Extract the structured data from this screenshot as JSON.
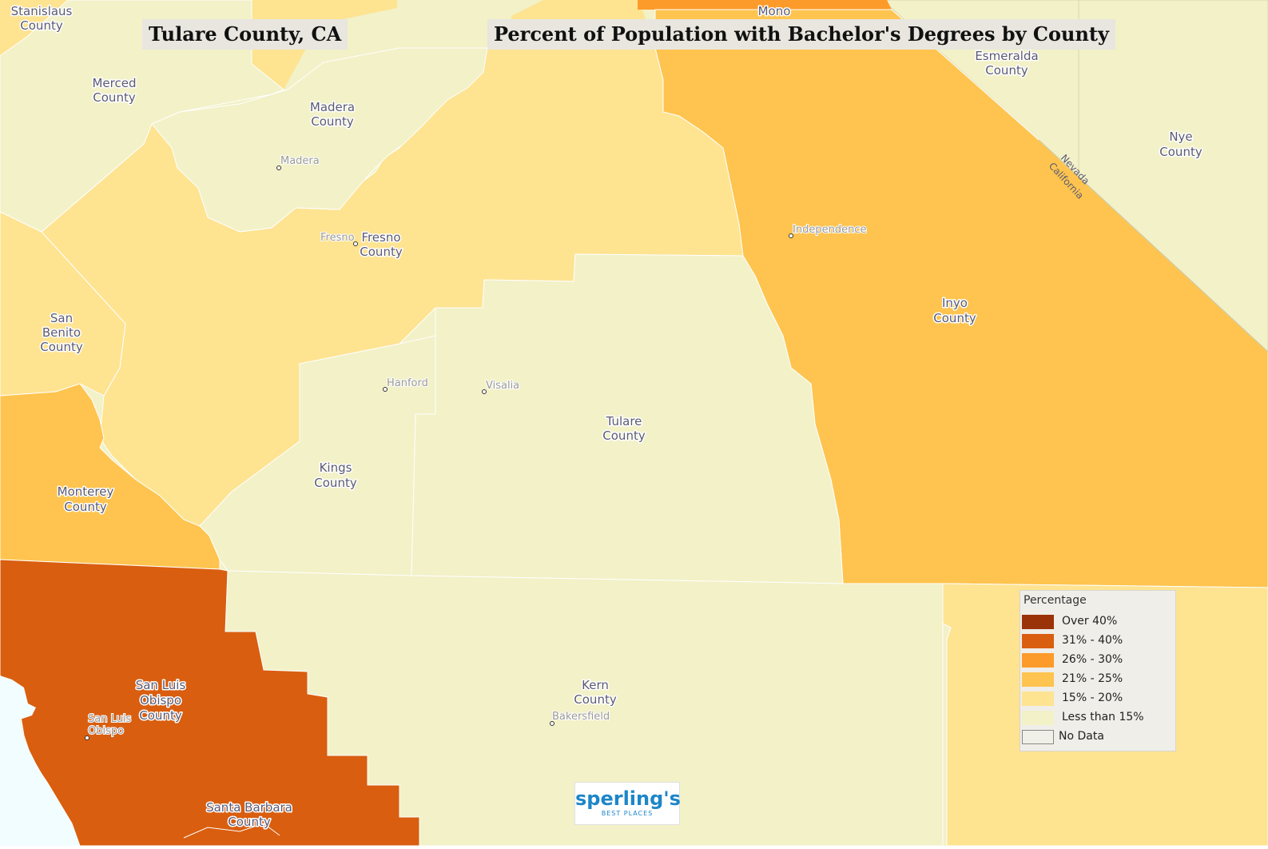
{
  "titles": {
    "county": "Tulare County, CA",
    "map": "Percent of Population with Bachelor's Degrees by County"
  },
  "legend": {
    "title": "Percentage",
    "items": [
      {
        "label": "Over 40%",
        "color": "#9b3308"
      },
      {
        "label": "31% - 40%",
        "color": "#d95e0f"
      },
      {
        "label": "26% - 30%",
        "color": "#fd9b2a"
      },
      {
        "label": "21% - 25%",
        "color": "#fec44f"
      },
      {
        "label": "15% - 20%",
        "color": "#fee391"
      },
      {
        "label": "Less than 15%",
        "color": "#f2f1c8"
      },
      {
        "label": "No Data",
        "color": "#f0efe8"
      }
    ]
  },
  "counties": {
    "stanislaus": "Stanislaus\nCounty",
    "merced": "Merced\nCounty",
    "madera": "Madera\nCounty",
    "mono": "Mono",
    "esmeralda": "Esmeralda\nCounty",
    "nye": "Nye\nCounty",
    "fresno": "Fresno\nCounty",
    "san_benito": "San\nBenito\nCounty",
    "inyo": "Inyo\nCounty",
    "tulare": "Tulare\nCounty",
    "kings": "Kings\nCounty",
    "monterey": "Monterey\nCounty",
    "kern": "Kern\nCounty",
    "san_luis_obispo": "San Luis\nObispo\nCounty",
    "santa_barbara": "Santa Barbara\nCounty"
  },
  "cities": {
    "madera": "Madera",
    "fresno": "Fresno",
    "independence": "Independence",
    "hanford": "Hanford",
    "visalia": "Visalia",
    "san_luis_obispo": "San Luis\nObispo",
    "bakersfield": "Bakersfield"
  },
  "state_labels": {
    "nevada": "Nevada",
    "california": "California"
  },
  "logo": {
    "main": "sperling's",
    "sub": "BEST PLACES"
  }
}
